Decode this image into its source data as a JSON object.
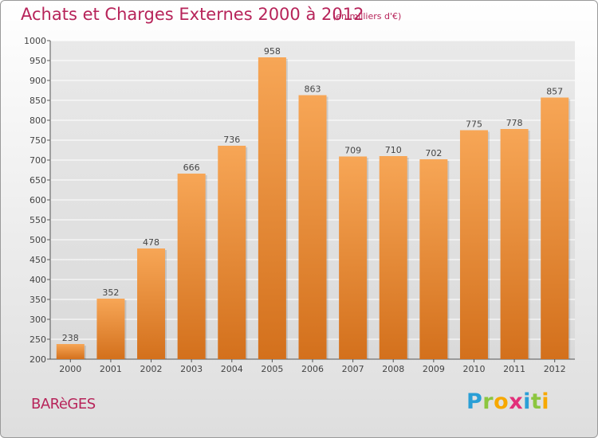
{
  "header": {
    "title": "Achats et Charges Externes 2000 à 2012",
    "subtitle": "(en milliers d'€)"
  },
  "footer": {
    "town": "BARèGES",
    "logo_letters": [
      {
        "ch": "P",
        "color": "#2a9fd6"
      },
      {
        "ch": "r",
        "color": "#8cc63f"
      },
      {
        "ch": "o",
        "color": "#f7a800"
      },
      {
        "ch": "x",
        "color": "#e2307a"
      },
      {
        "ch": "i",
        "color": "#2a9fd6"
      },
      {
        "ch": "t",
        "color": "#8cc63f"
      },
      {
        "ch": "i",
        "color": "#f7a800"
      }
    ]
  },
  "chart_data": {
    "type": "bar",
    "title": "Achats et Charges Externes 2000 à 2012",
    "subtitle": "(en milliers d'€)",
    "categories": [
      "2000",
      "2001",
      "2002",
      "2003",
      "2004",
      "2005",
      "2006",
      "2007",
      "2008",
      "2009",
      "2010",
      "2011",
      "2012"
    ],
    "values": [
      238,
      352,
      478,
      666,
      736,
      958,
      863,
      709,
      710,
      702,
      775,
      778,
      857
    ],
    "ylim": [
      200,
      1000
    ],
    "yticks": [
      200,
      250,
      300,
      350,
      400,
      450,
      500,
      550,
      600,
      650,
      700,
      750,
      800,
      850,
      900,
      950,
      1000
    ],
    "grid": true,
    "bar_color_top": "#f7a656",
    "bar_color_bottom": "#d3701c"
  }
}
